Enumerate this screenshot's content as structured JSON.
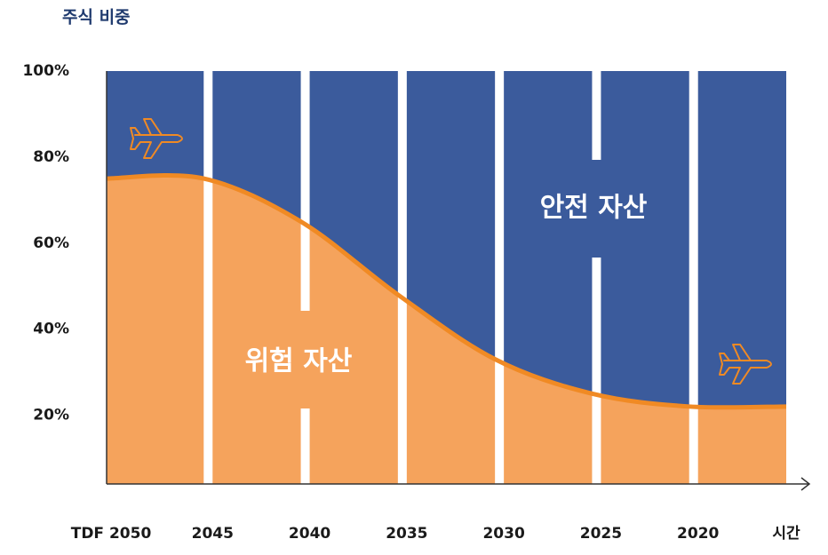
{
  "chart_data": {
    "type": "area",
    "y_label": "주식 비중",
    "x_label": "시간",
    "categories": [
      "TDF 2050",
      "2045",
      "2040",
      "2035",
      "2030",
      "2025",
      "2020",
      null
    ],
    "series": [
      {
        "name": "주식 비중",
        "color": "#f5a35c",
        "line_color": "#f08a24",
        "values": [
          75,
          75,
          65,
          48,
          33,
          25,
          22,
          22
        ]
      }
    ],
    "background_color": "#3b5b9c",
    "annotations": [
      "위험 자산",
      "안전 자산"
    ],
    "ylim": [
      4,
      100
    ],
    "yticks": [
      {
        "value": 20,
        "label": "20%"
      },
      {
        "value": 40,
        "label": "40%"
      },
      {
        "value": 60,
        "label": "60%"
      },
      {
        "value": 80,
        "label": "80%"
      },
      {
        "value": 100,
        "label": "100%"
      }
    ]
  }
}
